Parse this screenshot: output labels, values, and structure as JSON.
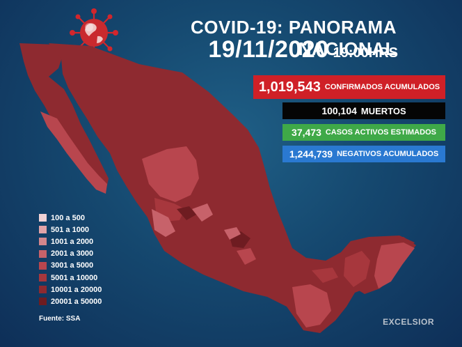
{
  "header": {
    "title": "COVID-19: PANORAMA NACIONAL",
    "date": "19/11/2020",
    "time": "19:00HRS"
  },
  "stats": {
    "confirmed": {
      "value": "1,019,543",
      "label": "CONFIRMADOS ACUMULADOS",
      "color": "#cf2027"
    },
    "deaths": {
      "value": "100,104",
      "label": "MUERTOS",
      "color": "#050505"
    },
    "active": {
      "value": "37,473",
      "label": "CASOS ACTIVOS ESTIMADOS",
      "color": "#3fa948"
    },
    "negative": {
      "value": "1,244,739",
      "label": "NEGATIVOS ACUMULADOS",
      "color": "#2a79d1"
    }
  },
  "legend": [
    {
      "label": "100 a 500",
      "color": "#f2d3d6"
    },
    {
      "label": "501 a 1000",
      "color": "#e2a3a8"
    },
    {
      "label": "1001 a 2000",
      "color": "#d3868c"
    },
    {
      "label": "2001 a 3000",
      "color": "#c7626a"
    },
    {
      "label": "3001 a 5000",
      "color": "#b8464e"
    },
    {
      "label": "5001 a 10000",
      "color": "#a7373d"
    },
    {
      "label": "10001 a 20000",
      "color": "#8e2a30"
    },
    {
      "label": "20001 a 50000",
      "color": "#6e1c21"
    }
  ],
  "source": "Fuente: SSA",
  "brand": "EXCELSIOR",
  "icons": {
    "globe": "virus-globe-icon"
  }
}
